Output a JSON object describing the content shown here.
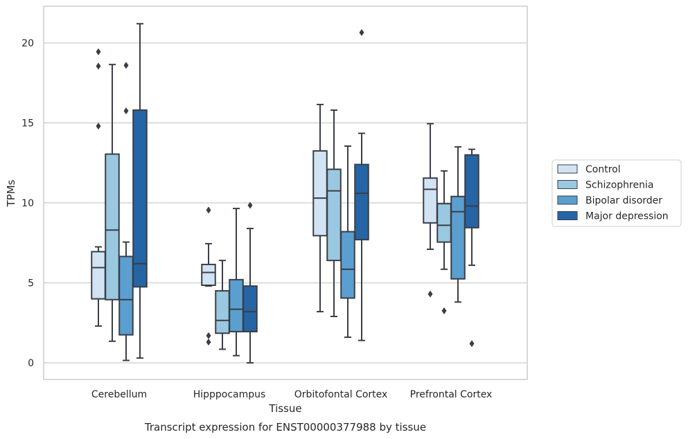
{
  "chart_data": {
    "type": "box",
    "caption": "Transcript expression for ENST00000377988 by tissue",
    "xlabel": "Tissue",
    "ylabel": "TPMs",
    "ylim": [
      -1,
      22.5
    ],
    "yticks": [
      0,
      5,
      10,
      15,
      20
    ],
    "grid": true,
    "legend_position": "right",
    "categories": [
      "Cerebellum",
      "Hipppocampus",
      "Orbitofontal Cortex",
      "Prefrontal Cortex"
    ],
    "series": [
      {
        "name": "Control",
        "color": "#d2e3f3",
        "boxes": [
          {
            "whisker_low": 2.3,
            "q1": 4.0,
            "median": 5.95,
            "q3": 6.95,
            "whisker_high": 7.25,
            "outliers": [
              14.8,
              18.55,
              19.45
            ]
          },
          {
            "whisker_low": 4.8,
            "q1": 4.85,
            "median": 5.65,
            "q3": 6.15,
            "whisker_high": 7.45,
            "outliers": [
              1.3,
              1.7,
              9.55
            ]
          },
          {
            "whisker_low": 3.2,
            "q1": 7.95,
            "median": 10.3,
            "q3": 13.25,
            "whisker_high": 16.15,
            "outliers": []
          },
          {
            "whisker_low": 7.1,
            "q1": 8.75,
            "median": 10.85,
            "q3": 11.55,
            "whisker_high": 14.95,
            "outliers": [
              4.3
            ]
          }
        ]
      },
      {
        "name": "Schizophrenia",
        "color": "#9ac8e0",
        "boxes": [
          {
            "whisker_low": 1.35,
            "q1": 3.95,
            "median": 8.3,
            "q3": 13.05,
            "whisker_high": 18.65,
            "outliers": []
          },
          {
            "whisker_low": 0.85,
            "q1": 1.85,
            "median": 2.65,
            "q3": 4.5,
            "whisker_high": 6.4,
            "outliers": []
          },
          {
            "whisker_low": 2.9,
            "q1": 6.4,
            "median": 10.75,
            "q3": 12.1,
            "whisker_high": 15.8,
            "outliers": []
          },
          {
            "whisker_low": 5.85,
            "q1": 7.55,
            "median": 8.6,
            "q3": 9.95,
            "whisker_high": 12.0,
            "outliers": [
              3.25
            ]
          }
        ]
      },
      {
        "name": "Bipolar disorder",
        "color": "#5a9fcf",
        "boxes": [
          {
            "whisker_low": 0.15,
            "q1": 1.75,
            "median": 3.95,
            "q3": 6.65,
            "whisker_high": 7.55,
            "outliers": [
              15.75,
              18.6
            ]
          },
          {
            "whisker_low": 0.45,
            "q1": 1.95,
            "median": 3.35,
            "q3": 5.2,
            "whisker_high": 9.65,
            "outliers": []
          },
          {
            "whisker_low": 1.6,
            "q1": 4.05,
            "median": 5.85,
            "q3": 8.2,
            "whisker_high": 13.55,
            "outliers": []
          },
          {
            "whisker_low": 3.8,
            "q1": 5.25,
            "median": 9.45,
            "q3": 10.4,
            "whisker_high": 13.5,
            "outliers": []
          }
        ]
      },
      {
        "name": "Major depression",
        "color": "#2565a5",
        "boxes": [
          {
            "whisker_low": 0.3,
            "q1": 4.75,
            "median": 6.2,
            "q3": 15.8,
            "whisker_high": 21.2,
            "outliers": []
          },
          {
            "whisker_low": 0.0,
            "q1": 1.95,
            "median": 3.2,
            "q3": 4.8,
            "whisker_high": 8.4,
            "outliers": [
              9.85
            ]
          },
          {
            "whisker_low": 1.4,
            "q1": 7.7,
            "median": 10.6,
            "q3": 12.4,
            "whisker_high": 14.35,
            "outliers": [
              20.65
            ]
          },
          {
            "whisker_low": 6.1,
            "q1": 8.45,
            "median": 9.8,
            "q3": 13.0,
            "whisker_high": 13.35,
            "outliers": [
              1.2
            ]
          }
        ]
      }
    ]
  },
  "colors": {
    "background": "#ffffff",
    "grid": "#cccccc",
    "box_edge": "#3a3d45",
    "frame": "#cccccc"
  }
}
